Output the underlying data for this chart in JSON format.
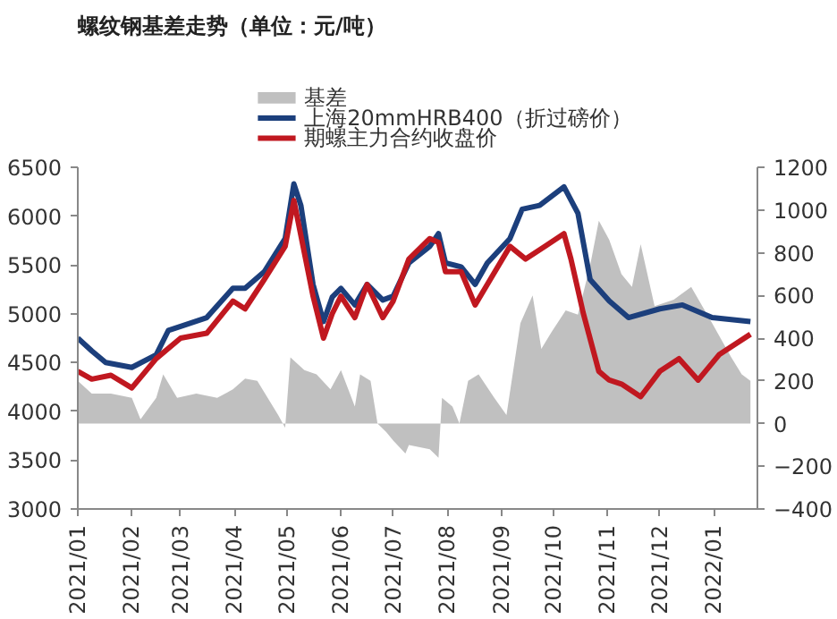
{
  "chart_data": {
    "type": "line",
    "title": "螺纹钢基差走势（单位：元/吨）",
    "legend": "top",
    "xlim": [
      "2021-01-01",
      "2022-01-26"
    ],
    "xticks": [
      {
        "value": "2021-01",
        "label": "2021/01"
      },
      {
        "value": "2021-02",
        "label": "2021/02"
      },
      {
        "value": "2021-03",
        "label": "2021/03"
      },
      {
        "value": "2021-04",
        "label": "2021/04"
      },
      {
        "value": "2021-05",
        "label": "2021/05"
      },
      {
        "value": "2021-06",
        "label": "2021/06"
      },
      {
        "value": "2021-07",
        "label": "2021/07"
      },
      {
        "value": "2021-08",
        "label": "2021/08"
      },
      {
        "value": "2021-09",
        "label": "2021/09"
      },
      {
        "value": "2021-10",
        "label": "2021/10"
      },
      {
        "value": "2021-11",
        "label": "2021/11"
      },
      {
        "value": "2021-12",
        "label": "2021/12"
      },
      {
        "value": "2022-01",
        "label": "2022/01"
      }
    ],
    "ylim": [
      3000,
      6500
    ],
    "yticks": [
      3000,
      3500,
      4000,
      4500,
      5000,
      5500,
      6000,
      6500
    ],
    "y2lim": [
      -400,
      1200
    ],
    "y2ticks": [
      -400,
      -200,
      0,
      200,
      400,
      600,
      800,
      1000,
      1200
    ],
    "series": [
      {
        "name": "基差",
        "type": "area",
        "axis": "y2",
        "color": "#c0c0c0",
        "x": [
          "2021-01-01",
          "2021-01-09",
          "2021-01-20",
          "2021-02-01",
          "2021-02-06",
          "2021-02-15",
          "2021-02-19",
          "2021-02-27",
          "2021-03-10",
          "2021-03-22",
          "2021-03-31",
          "2021-04-07",
          "2021-04-14",
          "2021-04-26",
          "2021-04-30",
          "2021-05-03",
          "2021-05-11",
          "2021-05-18",
          "2021-05-26",
          "2021-06-01",
          "2021-06-09",
          "2021-06-12",
          "2021-06-18",
          "2021-06-22",
          "2021-06-27",
          "2021-07-01",
          "2021-07-08",
          "2021-07-10",
          "2021-07-22",
          "2021-07-27",
          "2021-07-29",
          "2021-08-04",
          "2021-08-08",
          "2021-08-13",
          "2021-08-19",
          "2021-08-28",
          "2021-09-04",
          "2021-09-12",
          "2021-09-19",
          "2021-09-24",
          "2021-09-30",
          "2021-10-08",
          "2021-10-15",
          "2021-10-22",
          "2021-10-27",
          "2021-11-02",
          "2021-11-09",
          "2021-11-15",
          "2021-11-20",
          "2021-11-28",
          "2021-12-09",
          "2021-12-19",
          "2021-12-31",
          "2022-01-11",
          "2022-01-17",
          "2022-01-22"
        ],
        "values": [
          200,
          140,
          140,
          120,
          20,
          120,
          230,
          120,
          140,
          120,
          160,
          210,
          200,
          40,
          -20,
          310,
          250,
          230,
          160,
          250,
          80,
          230,
          200,
          0,
          -40,
          -80,
          -140,
          -100,
          -120,
          -160,
          120,
          80,
          0,
          200,
          230,
          120,
          40,
          470,
          600,
          350,
          430,
          530,
          510,
          740,
          950,
          860,
          700,
          640,
          840,
          550,
          580,
          640,
          470,
          310,
          230,
          200
        ]
      },
      {
        "name": "上海20mmHRB400（折过磅价）",
        "type": "line",
        "color": "#1c3f7c",
        "x": [
          "2021-01-01",
          "2021-01-09",
          "2021-01-17",
          "2021-02-01",
          "2021-02-15",
          "2021-02-22",
          "2021-03-01",
          "2021-03-16",
          "2021-03-31",
          "2021-04-07",
          "2021-04-18",
          "2021-04-30",
          "2021-05-05",
          "2021-05-09",
          "2021-05-16",
          "2021-05-22",
          "2021-05-27",
          "2021-06-01",
          "2021-06-09",
          "2021-06-16",
          "2021-06-25",
          "2021-07-01",
          "2021-07-10",
          "2021-07-22",
          "2021-07-27",
          "2021-07-31",
          "2021-08-09",
          "2021-08-17",
          "2021-08-24",
          "2021-09-06",
          "2021-09-13",
          "2021-09-23",
          "2021-10-07",
          "2021-10-15",
          "2021-10-22",
          "2021-11-02",
          "2021-11-13",
          "2021-12-01",
          "2021-12-14",
          "2021-12-31",
          "2022-01-22"
        ],
        "values": [
          4750,
          4620,
          4500,
          4450,
          4580,
          4830,
          4870,
          4960,
          5260,
          5260,
          5430,
          5770,
          6330,
          6110,
          5300,
          4920,
          5170,
          5260,
          5090,
          5300,
          5140,
          5180,
          5520,
          5690,
          5820,
          5520,
          5480,
          5300,
          5520,
          5770,
          6070,
          6110,
          6300,
          6030,
          5350,
          5130,
          4960,
          5050,
          5090,
          4960,
          4920
        ]
      },
      {
        "name": "期螺主力合约收盘价",
        "type": "line",
        "color": "#c01820",
        "x": [
          "2021-01-01",
          "2021-01-09",
          "2021-01-20",
          "2021-02-01",
          "2021-02-15",
          "2021-03-01",
          "2021-03-16",
          "2021-03-31",
          "2021-04-07",
          "2021-04-18",
          "2021-04-30",
          "2021-05-05",
          "2021-05-16",
          "2021-05-22",
          "2021-05-27",
          "2021-06-01",
          "2021-06-09",
          "2021-06-16",
          "2021-06-25",
          "2021-07-01",
          "2021-07-10",
          "2021-07-22",
          "2021-07-27",
          "2021-07-31",
          "2021-08-09",
          "2021-08-17",
          "2021-08-24",
          "2021-09-06",
          "2021-09-15",
          "2021-09-26",
          "2021-10-07",
          "2021-10-11",
          "2021-10-18",
          "2021-10-27",
          "2021-11-02",
          "2021-11-09",
          "2021-11-20",
          "2021-12-01",
          "2021-12-12",
          "2021-12-23",
          "2022-01-04",
          "2022-01-22"
        ],
        "values": [
          4410,
          4330,
          4370,
          4240,
          4540,
          4750,
          4800,
          5130,
          5050,
          5350,
          5690,
          6160,
          5180,
          4750,
          5000,
          5180,
          4960,
          5300,
          4960,
          5130,
          5560,
          5770,
          5730,
          5430,
          5430,
          5090,
          5300,
          5690,
          5560,
          5690,
          5820,
          5560,
          5010,
          4410,
          4320,
          4280,
          4150,
          4410,
          4540,
          4320,
          4580,
          4790
        ]
      }
    ]
  }
}
